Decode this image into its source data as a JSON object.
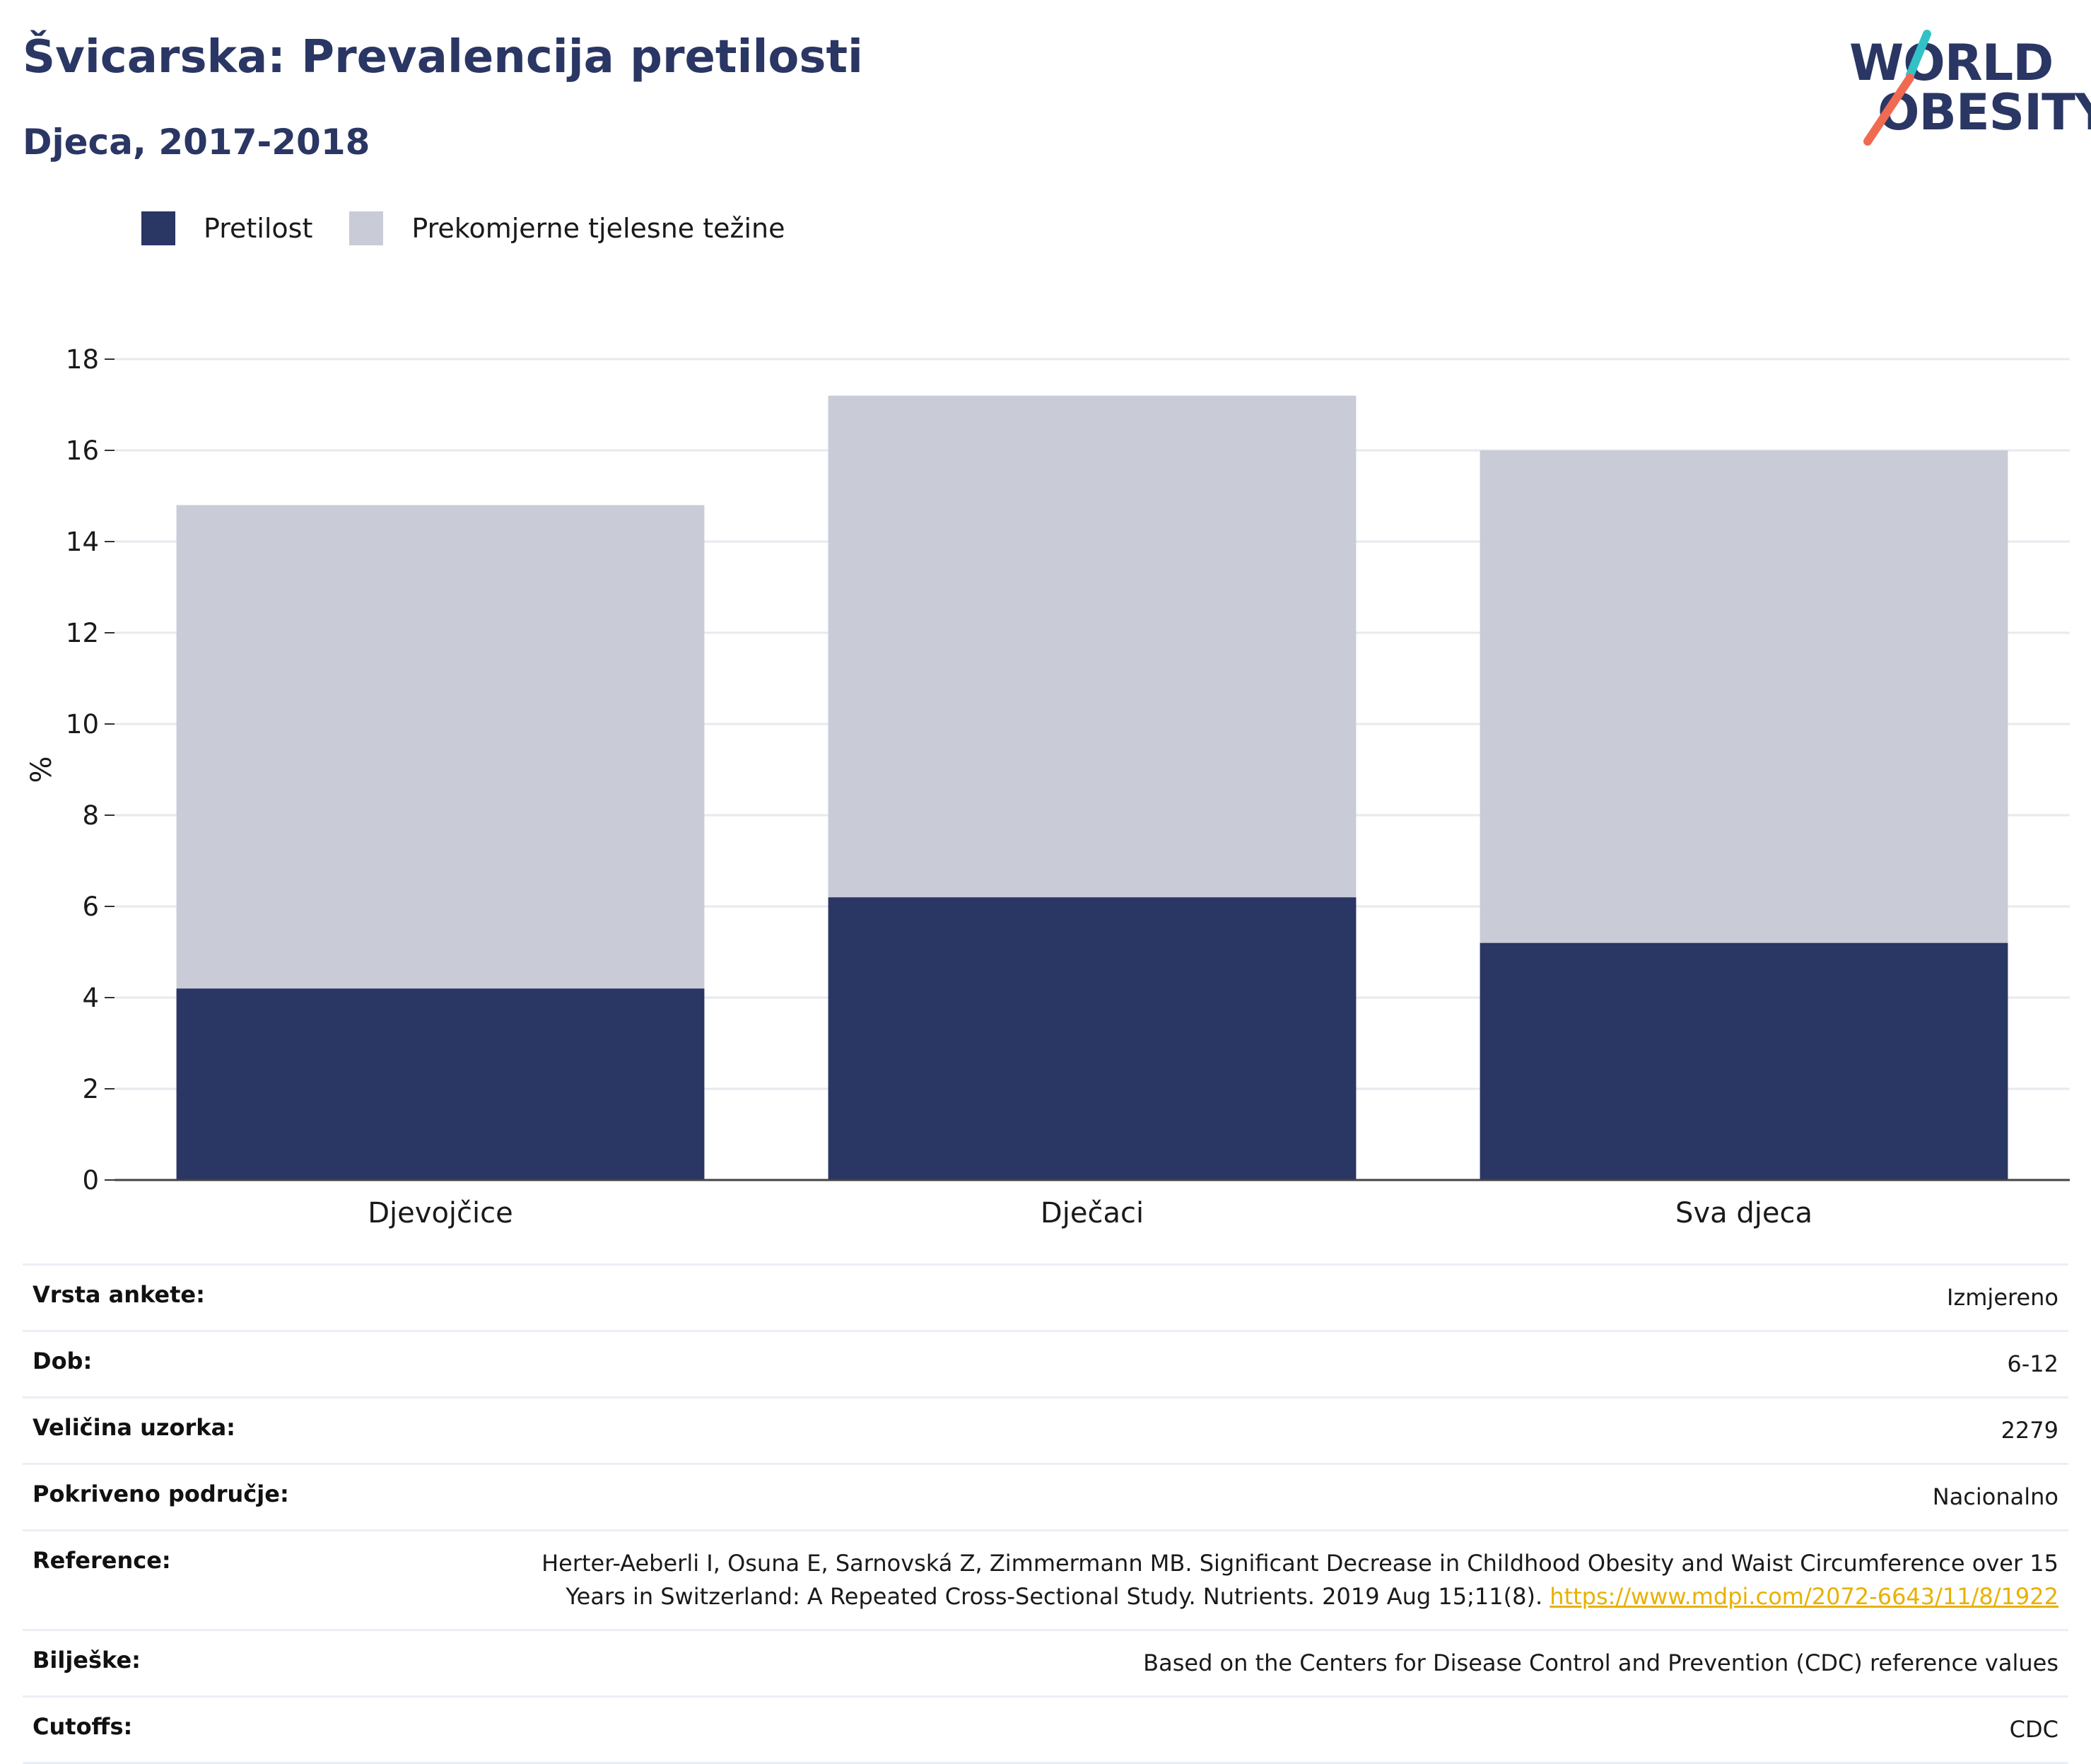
{
  "header": {
    "title": "Švicarska: Prevalencija pretilosti",
    "subtitle": "Djeca, 2017-2018"
  },
  "logo": {
    "line1": "WORLD",
    "line2": "OBESITY",
    "accent_colors": [
      "#33c1c8",
      "#f06a52"
    ]
  },
  "legend": {
    "items": [
      {
        "label": "Pretilost",
        "color": "#2a3663"
      },
      {
        "label": "Prekomjerne tjelesne težine",
        "color": "#c9cbd7"
      }
    ]
  },
  "chart_data": {
    "type": "bar",
    "stacked": true,
    "categories": [
      "Djevojčice",
      "Dječaci",
      "Sva djeca"
    ],
    "series": [
      {
        "name": "Pretilost",
        "color": "#2a3663",
        "values": [
          4.2,
          6.2,
          5.2
        ]
      },
      {
        "name": "Prekomjerne tjelesne težine",
        "color": "#c9cbd7",
        "values": [
          10.6,
          11.0,
          10.8
        ]
      }
    ],
    "ylabel": "%",
    "ylim": [
      0,
      18
    ],
    "yticks": [
      0,
      2,
      4,
      6,
      8,
      10,
      12,
      14,
      16,
      18
    ],
    "grid": true,
    "legend_position": "top-left"
  },
  "info": {
    "rows": [
      {
        "label": "Vrsta ankete:",
        "value": "Izmjereno"
      },
      {
        "label": "Dob:",
        "value": "6-12"
      },
      {
        "label": "Veličina uzorka:",
        "value": "2279"
      },
      {
        "label": "Pokriveno područje:",
        "value": "Nacionalno"
      },
      {
        "label": "Reference:",
        "value_line1": "Herter-Aeberli I, Osuna E, Sarnovská Z, Zimmermann MB. Significant Decrease in Childhood Obesity and Waist Circumference over 15",
        "value_line2": "Years in Switzerland: A Repeated Cross-Sectional Study. Nutrients. 2019 Aug 15;11(8).",
        "link": "https://www.mdpi.com/2072-6643/11/8/1922"
      },
      {
        "label": "Bilješke:",
        "value": "Based on the Centers for Disease Control and Prevention (CDC) reference values"
      },
      {
        "label": "Cutoffs:",
        "value": "CDC"
      }
    ]
  }
}
